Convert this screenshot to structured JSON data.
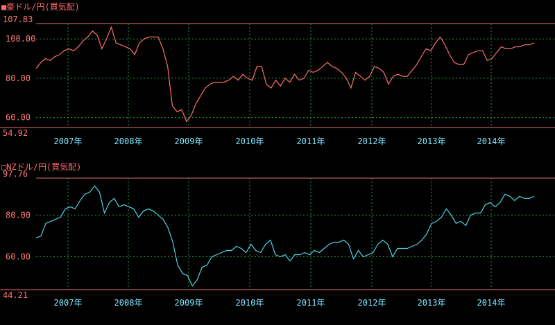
{
  "chart_data": [
    {
      "type": "line",
      "title": "■豪ドル/円(買気配)",
      "ylim": [
        54.92,
        107.83
      ],
      "y_ticks": [
        "107.83",
        "100.00",
        "80.00",
        "60.00",
        "54.92"
      ],
      "x_ticks": [
        "2007年",
        "2008年",
        "2009年",
        "2010年",
        "2011年",
        "2012年",
        "2013年",
        "2014年"
      ],
      "series": [
        {
          "color": "#ff6f6f",
          "values": [
            85,
            88,
            90,
            89,
            91,
            92,
            94,
            95,
            94,
            96,
            99,
            101,
            104,
            102,
            95,
            100,
            106,
            98,
            97,
            96,
            95,
            92,
            98,
            100,
            101,
            101,
            101,
            95,
            86,
            66,
            63,
            64,
            58,
            61,
            67,
            71,
            75,
            77,
            78,
            78,
            78,
            79,
            81,
            79,
            82,
            80,
            79,
            86,
            86,
            77,
            75,
            79,
            76,
            80,
            78,
            82,
            79,
            80,
            84,
            83,
            84,
            86,
            88,
            86,
            85,
            83,
            80,
            75,
            83,
            81,
            79,
            81,
            86,
            85,
            83,
            77,
            81,
            82,
            81,
            81,
            84,
            87,
            91,
            95,
            94,
            98,
            101,
            97,
            92,
            88,
            87,
            87,
            92,
            93,
            94,
            94,
            89,
            90,
            93,
            96,
            95,
            95,
            96,
            96,
            97,
            97,
            98
          ]
        }
      ]
    },
    {
      "type": "line",
      "title": "□NZドル/円(買気配)",
      "ylim": [
        44.21,
        97.76
      ],
      "y_ticks": [
        "97.76",
        "80.00",
        "60.00",
        "44.21"
      ],
      "x_ticks": [
        "2007年",
        "2008年",
        "2009年",
        "2010年",
        "2011年",
        "2012年",
        "2013年",
        "2014年"
      ],
      "series": [
        {
          "color": "#4fd3e6",
          "values": [
            69,
            70,
            76,
            77,
            78,
            79,
            83,
            84,
            83,
            87,
            90,
            91,
            94,
            91,
            81,
            86,
            88,
            84,
            85,
            84,
            83,
            79,
            82,
            83,
            82,
            80,
            78,
            74,
            67,
            56,
            52,
            51,
            46,
            49,
            55,
            56,
            60,
            61,
            62,
            63,
            63,
            65,
            64,
            62,
            66,
            63,
            62,
            66,
            68,
            61,
            60,
            61,
            58,
            61,
            61,
            62,
            61,
            63,
            62,
            64,
            66,
            67,
            67,
            68,
            66,
            59,
            63,
            60,
            61,
            62,
            66,
            68,
            66,
            60,
            64,
            64,
            64,
            65,
            66,
            68,
            71,
            76,
            77,
            79,
            83,
            80,
            76,
            77,
            75,
            80,
            81,
            81,
            85,
            86,
            84,
            86,
            90,
            89,
            87,
            89,
            88,
            88,
            89
          ]
        }
      ]
    }
  ]
}
